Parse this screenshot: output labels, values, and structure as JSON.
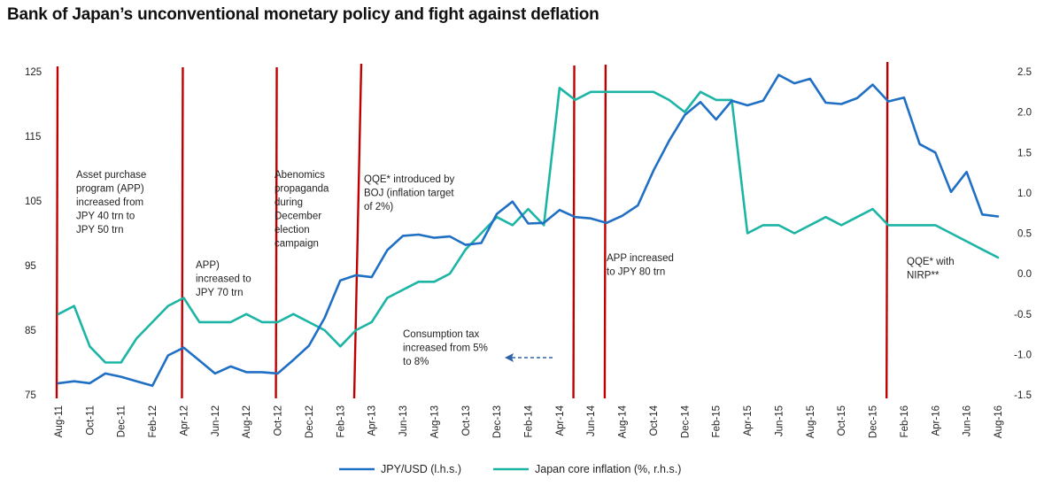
{
  "chart_data": {
    "type": "line",
    "title": "Bank of Japan’s unconventional monetary policy and fight against deflation",
    "x_months": [
      "Aug-11",
      "Sep-11",
      "Oct-11",
      "Nov-11",
      "Dec-11",
      "Jan-12",
      "Feb-12",
      "Mar-12",
      "Apr-12",
      "May-12",
      "Jun-12",
      "Jul-12",
      "Aug-12",
      "Sep-12",
      "Oct-12",
      "Nov-12",
      "Dec-12",
      "Jan-13",
      "Feb-13",
      "Mar-13",
      "Apr-13",
      "May-13",
      "Jun-13",
      "Jul-13",
      "Aug-13",
      "Sep-13",
      "Oct-13",
      "Nov-13",
      "Dec-13",
      "Jan-14",
      "Feb-14",
      "Mar-14",
      "Apr-14",
      "May-14",
      "Jun-14",
      "Jul-14",
      "Aug-14",
      "Sep-14",
      "Oct-14",
      "Nov-14",
      "Dec-14",
      "Jan-15",
      "Feb-15",
      "Mar-15",
      "Apr-15",
      "May-15",
      "Jun-15",
      "Jul-15",
      "Aug-15",
      "Sep-15",
      "Oct-15",
      "Nov-15",
      "Dec-15",
      "Jan-16",
      "Feb-16",
      "Mar-16",
      "Apr-16",
      "May-16",
      "Jun-16",
      "Jul-16",
      "Aug-16"
    ],
    "x_tick_labels": [
      "Aug-11",
      "Oct-11",
      "Dec-11",
      "Feb-12",
      "Apr-12",
      "Jun-12",
      "Aug-12",
      "Oct-12",
      "Dec-12",
      "Feb-13",
      "Apr-13",
      "Jun-13",
      "Aug-13",
      "Oct-13",
      "Dec-13",
      "Feb-14",
      "Apr-14",
      "Jun-14",
      "Aug-14",
      "Oct-14",
      "Dec-14",
      "Feb-15",
      "Apr-15",
      "Jun-15",
      "Aug-15",
      "Oct-15",
      "Dec-15",
      "Feb-16",
      "Apr-16",
      "Jun-16",
      "Aug-16"
    ],
    "y_left": {
      "range": [
        75,
        125
      ],
      "ticks": [
        "125",
        "115",
        "105",
        "95",
        "85",
        "75"
      ]
    },
    "y_right": {
      "range": [
        -1.5,
        2.5
      ],
      "ticks": [
        "2.5",
        "2.0",
        "1.5",
        "1.0",
        "0.5",
        "0.0",
        "-0.5",
        "-1.0",
        "-1.5"
      ]
    },
    "series": [
      {
        "name": "JPY/USD (l.h.s.)",
        "axis": "left",
        "color": "#1f6fc5",
        "values": [
          76.8,
          77.1,
          76.8,
          78.3,
          77.8,
          77.1,
          76.4,
          81.1,
          82.3,
          80.3,
          78.3,
          79.4,
          78.5,
          78.5,
          78.3,
          80.4,
          82.6,
          86.9,
          92.7,
          93.5,
          93.2,
          97.4,
          99.6,
          99.8,
          99.3,
          99.5,
          98.2,
          98.5,
          103.0,
          104.9,
          101.5,
          101.6,
          103.6,
          102.5,
          102.3,
          101.6,
          102.7,
          104.3,
          109.7,
          114.3,
          118.3,
          120.3,
          117.6,
          120.5,
          119.8,
          120.5,
          124.5,
          123.2,
          123.9,
          120.2,
          120.0,
          120.9,
          123.0,
          120.4,
          121.0,
          113.8,
          112.5,
          106.4,
          109.5,
          102.9,
          102.6
        ]
      },
      {
        "name": "Japan core inflation (%, r.h.s.)",
        "axis": "right",
        "color": "#1cb5a5",
        "values": [
          -0.5,
          -0.4,
          -0.9,
          -1.1,
          -1.1,
          -0.8,
          -0.6,
          -0.4,
          -0.3,
          -0.6,
          -0.6,
          -0.6,
          -0.5,
          -0.6,
          -0.6,
          -0.5,
          -0.6,
          -0.7,
          -0.9,
          -0.7,
          -0.6,
          -0.3,
          -0.2,
          -0.1,
          -0.1,
          0.0,
          0.3,
          0.5,
          0.7,
          0.6,
          0.8,
          0.6,
          2.3,
          2.15,
          2.25,
          2.25,
          2.25,
          2.25,
          2.25,
          2.15,
          2.0,
          2.25,
          2.15,
          2.15,
          0.5,
          0.6,
          0.6,
          0.5,
          0.6,
          0.7,
          0.6,
          0.7,
          0.8,
          0.6,
          0.6,
          0.6,
          0.6,
          0.5,
          0.4,
          0.3,
          0.2
        ]
      }
    ],
    "policy_events_month_index": [
      0,
      8,
      14,
      19,
      33,
      35,
      53
    ],
    "annotations": [
      {
        "lines": [
          "Asset purchase",
          "program (APP)",
          "increased from",
          "JPY 40 trn to",
          "JPY 50 trn"
        ]
      },
      {
        "lines": [
          "APP)",
          "increased to",
          "JPY 70 trn"
        ]
      },
      {
        "lines": [
          "Abenomics",
          "propaganda",
          "during",
          "December",
          "election",
          "campaign"
        ]
      },
      {
        "lines": [
          "QQE* introduced by",
          "BOJ (inflation target",
          "of 2%)"
        ]
      },
      {
        "lines": [
          "Consumption tax",
          "increased from 5%",
          "to 8%"
        ]
      },
      {
        "lines": [
          "APP increased",
          "to JPY 80 trn"
        ]
      },
      {
        "lines": [
          "QQE* with",
          "NIRP**"
        ]
      }
    ],
    "legend_position": "bottom-center"
  }
}
